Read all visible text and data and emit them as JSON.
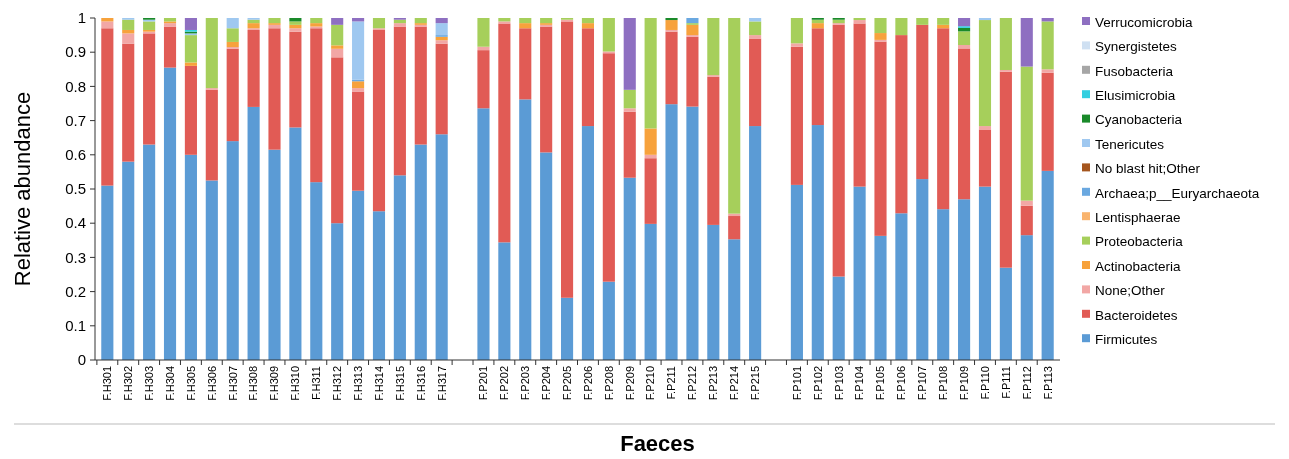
{
  "chart_data": {
    "type": "bar",
    "stacked": true,
    "xlabel": "Faeces",
    "ylabel": "Relative abundance",
    "ylim": [
      0,
      1
    ],
    "yticks": [
      0,
      0.1,
      0.2,
      0.3,
      0.4,
      0.5,
      0.6,
      0.7,
      0.8,
      0.9,
      1
    ],
    "grid": false,
    "legend": "right",
    "categories": [
      "F.H301",
      "F.H302",
      "F.H303",
      "F.H304",
      "F.H305",
      "F.H306",
      "F.H307",
      "F.H308",
      "F.H309",
      "F.H310",
      "F.H311",
      "F.H312",
      "F.H313",
      "F.H314",
      "F.H315",
      "F.H316",
      "F.H317",
      null,
      "F.P201",
      "F.P202",
      "F.P203",
      "F.P204",
      "F.P205",
      "F.P206",
      "F.P208",
      "F.P209",
      "F.P210",
      "F.P211",
      "F.P212",
      "F.P213",
      "F.P214",
      "F.P215",
      null,
      "F.P101",
      "F.P102",
      "F.P103",
      "F.P104",
      "F.P105",
      "F.P106",
      "F.P107",
      "F.P108",
      "F.P109",
      "F.P110",
      "F.P111",
      "F.P112",
      "F.P113"
    ],
    "series": [
      {
        "name": "Firmicutes",
        "color": "#5b9bd5",
        "values": [
          0.51,
          0.58,
          0.63,
          0.855,
          0.6,
          0.525,
          0.64,
          0.74,
          0.615,
          0.68,
          0.52,
          0.4,
          0.495,
          0.435,
          0.54,
          0.63,
          0.66,
          null,
          0.736,
          0.344,
          0.762,
          0.607,
          0.182,
          0.684,
          0.229,
          0.533,
          0.398,
          0.748,
          0.741,
          0.395,
          0.353,
          0.684,
          null,
          0.512,
          0.687,
          0.244,
          0.507,
          0.363,
          0.429,
          0.529,
          0.441,
          0.47,
          0.507,
          0.27,
          0.365,
          0.553
        ]
      },
      {
        "name": "Bacteroidetes",
        "color": "#e15b55",
        "values": [
          0.46,
          0.345,
          0.325,
          0.12,
          0.26,
          0.265,
          0.27,
          0.225,
          0.355,
          0.28,
          0.45,
          0.485,
          0.29,
          0.53,
          0.435,
          0.345,
          0.265,
          null,
          0.17,
          0.64,
          0.208,
          0.368,
          0.808,
          0.286,
          0.668,
          0.193,
          0.192,
          0.212,
          0.204,
          0.433,
          0.068,
          0.256,
          null,
          0.404,
          0.283,
          0.736,
          0.477,
          0.568,
          0.521,
          0.451,
          0.529,
          0.441,
          0.167,
          0.573,
          0.086,
          0.287
        ]
      },
      {
        "name": "None;Other",
        "color": "#f2a7a5",
        "values": [
          0.02,
          0.03,
          0.005,
          0.01,
          0,
          0.005,
          0.005,
          0.005,
          0.01,
          0.01,
          0.005,
          0.025,
          0.01,
          0.005,
          0.01,
          0.005,
          0.01,
          null,
          0.01,
          0.006,
          0,
          0.005,
          0.005,
          0,
          0.005,
          0.01,
          0.01,
          0.005,
          0.005,
          0.005,
          0.007,
          0.01,
          null,
          0.01,
          0,
          0.005,
          0.01,
          0.005,
          0,
          0,
          0,
          0.01,
          0.01,
          0.005,
          0.015,
          0.01
        ]
      },
      {
        "name": "Actinobacteria",
        "color": "#f7a23c",
        "values": [
          0.01,
          0.01,
          0.005,
          0.005,
          0.01,
          0,
          0.015,
          0.015,
          0.005,
          0.01,
          0.01,
          0.01,
          0.02,
          0,
          0,
          0.005,
          0.01,
          null,
          0,
          0,
          0.015,
          0.005,
          0,
          0.015,
          0,
          0,
          0.077,
          0.029,
          0.03,
          0,
          0,
          0,
          null,
          0,
          0.015,
          0,
          0,
          0.02,
          0,
          0,
          0.01,
          0,
          0,
          0,
          0,
          0
        ]
      },
      {
        "name": "Proteobacteria",
        "color": "#a6cf5b",
        "values": [
          0,
          0.03,
          0.025,
          0.01,
          0.08,
          0.205,
          0.04,
          0.01,
          0.015,
          0.01,
          0.015,
          0.06,
          0,
          0.03,
          0.01,
          0.015,
          0,
          null,
          0.084,
          0.01,
          0.015,
          0.015,
          0.005,
          0.015,
          0.098,
          0.054,
          0.323,
          0,
          0.005,
          0.167,
          0.572,
          0.04,
          null,
          0.074,
          0.01,
          0.01,
          0.006,
          0.044,
          0.05,
          0.02,
          0.02,
          0.04,
          0.31,
          0.152,
          0.392,
          0.14
        ]
      },
      {
        "name": "Lentisphaerae",
        "color": "#f9b46e",
        "values": [
          0,
          0,
          0,
          0,
          0,
          0,
          0,
          0,
          0,
          0,
          0,
          0,
          0,
          0,
          0,
          0,
          0,
          null,
          0,
          0,
          0,
          0,
          0,
          0,
          0,
          0,
          0,
          0,
          0,
          0,
          0,
          0,
          null,
          0,
          0,
          0,
          0,
          0,
          0,
          0,
          0,
          0,
          0,
          0,
          0,
          0
        ]
      },
      {
        "name": "Archaea;p__Euryarchaeota",
        "color": "#6aa8e0",
        "values": [
          0,
          0,
          0,
          0,
          0,
          0,
          0,
          0,
          0,
          0,
          0,
          0,
          0.005,
          0,
          0,
          0,
          0.005,
          null,
          0,
          0,
          0,
          0,
          0,
          0,
          0,
          0,
          0,
          0,
          0.015,
          0,
          0,
          0,
          null,
          0,
          0,
          0,
          0,
          0,
          0,
          0,
          0,
          0,
          0,
          0,
          0,
          0
        ]
      },
      {
        "name": "No blast hit;Other",
        "color": "#a5561e",
        "values": [
          0,
          0,
          0,
          0,
          0,
          0,
          0,
          0,
          0,
          0,
          0,
          0,
          0,
          0,
          0,
          0,
          0,
          null,
          0,
          0,
          0,
          0,
          0,
          0,
          0,
          0,
          0,
          0,
          0,
          0,
          0,
          0,
          null,
          0,
          0,
          0,
          0,
          0,
          0,
          0,
          0,
          0,
          0,
          0,
          0,
          0
        ]
      },
      {
        "name": "Tenericutes",
        "color": "#9fc8f0",
        "values": [
          0,
          0.005,
          0.005,
          0,
          0.005,
          0,
          0.03,
          0.005,
          0,
          0,
          0,
          0,
          0.17,
          0,
          0,
          0,
          0.035,
          null,
          0,
          0,
          0,
          0,
          0,
          0,
          0,
          0,
          0,
          0,
          0,
          0,
          0,
          0.01,
          null,
          0,
          0,
          0,
          0,
          0,
          0,
          0,
          0,
          0,
          0.006,
          0,
          0,
          0
        ]
      },
      {
        "name": "Cyanobacteria",
        "color": "#1a8a2a",
        "values": [
          0,
          0,
          0.005,
          0,
          0.005,
          0,
          0,
          0,
          0,
          0.01,
          0,
          0,
          0,
          0,
          0,
          0,
          0,
          null,
          0,
          0,
          0,
          0,
          0,
          0,
          0,
          0,
          0,
          0.006,
          0,
          0,
          0,
          0,
          null,
          0,
          0.005,
          0.005,
          0,
          0,
          0,
          0,
          0,
          0.01,
          0,
          0,
          0,
          0
        ]
      },
      {
        "name": "Elusimicrobia",
        "color": "#33cfe0",
        "values": [
          0,
          0,
          0,
          0,
          0.005,
          0,
          0,
          0,
          0,
          0,
          0,
          0,
          0,
          0,
          0,
          0,
          0,
          null,
          0,
          0,
          0,
          0,
          0,
          0,
          0,
          0,
          0,
          0,
          0,
          0,
          0,
          0,
          null,
          0,
          0,
          0,
          0,
          0,
          0,
          0,
          0,
          0.005,
          0,
          0,
          0,
          0
        ]
      },
      {
        "name": "Fusobacteria",
        "color": "#a6a6a6",
        "values": [
          0,
          0,
          0,
          0,
          0,
          0,
          0,
          0,
          0,
          0,
          0,
          0,
          0,
          0,
          0,
          0,
          0,
          null,
          0,
          0,
          0,
          0,
          0,
          0,
          0,
          0,
          0,
          0,
          0,
          0,
          0,
          0,
          null,
          0,
          0,
          0,
          0,
          0,
          0,
          0,
          0,
          0,
          0,
          0,
          0,
          0
        ]
      },
      {
        "name": "Synergistetes",
        "color": "#cfe0f2",
        "values": [
          0,
          0,
          0,
          0,
          0,
          0,
          0,
          0,
          0,
          0,
          0,
          0,
          0,
          0,
          0,
          0,
          0,
          null,
          0,
          0,
          0,
          0,
          0,
          0,
          0,
          0,
          0,
          0,
          0,
          0,
          0,
          0,
          null,
          0,
          0,
          0,
          0,
          0,
          0,
          0,
          0,
          0,
          0,
          0,
          0,
          0
        ]
      },
      {
        "name": "Verrucomicrobia",
        "color": "#8e6fc1",
        "values": [
          0,
          0,
          0,
          0,
          0.035,
          0,
          0,
          0,
          0,
          0,
          0,
          0.02,
          0.01,
          0,
          0.005,
          0,
          0.015,
          null,
          0,
          0,
          0,
          0,
          0,
          0,
          0,
          0.21,
          0,
          0,
          0,
          0,
          0,
          0,
          null,
          0,
          0,
          0,
          0,
          0,
          0,
          0,
          0,
          0.024,
          0,
          0,
          0.142,
          0.01
        ]
      }
    ]
  }
}
